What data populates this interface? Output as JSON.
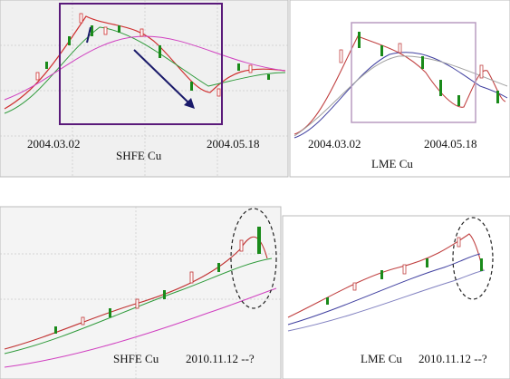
{
  "panels": [
    {
      "exchange": "SHFE Cu",
      "dates": [
        "2004.03.02",
        "2004.05.18"
      ]
    },
    {
      "exchange": "LME Cu",
      "dates": [
        "2004.03.02",
        "2004.05.18"
      ]
    },
    {
      "exchange": "SHFE Cu",
      "date": "2010.11.12 --?"
    },
    {
      "exchange": "LME Cu",
      "date": "2010.11.12 --?"
    }
  ]
}
